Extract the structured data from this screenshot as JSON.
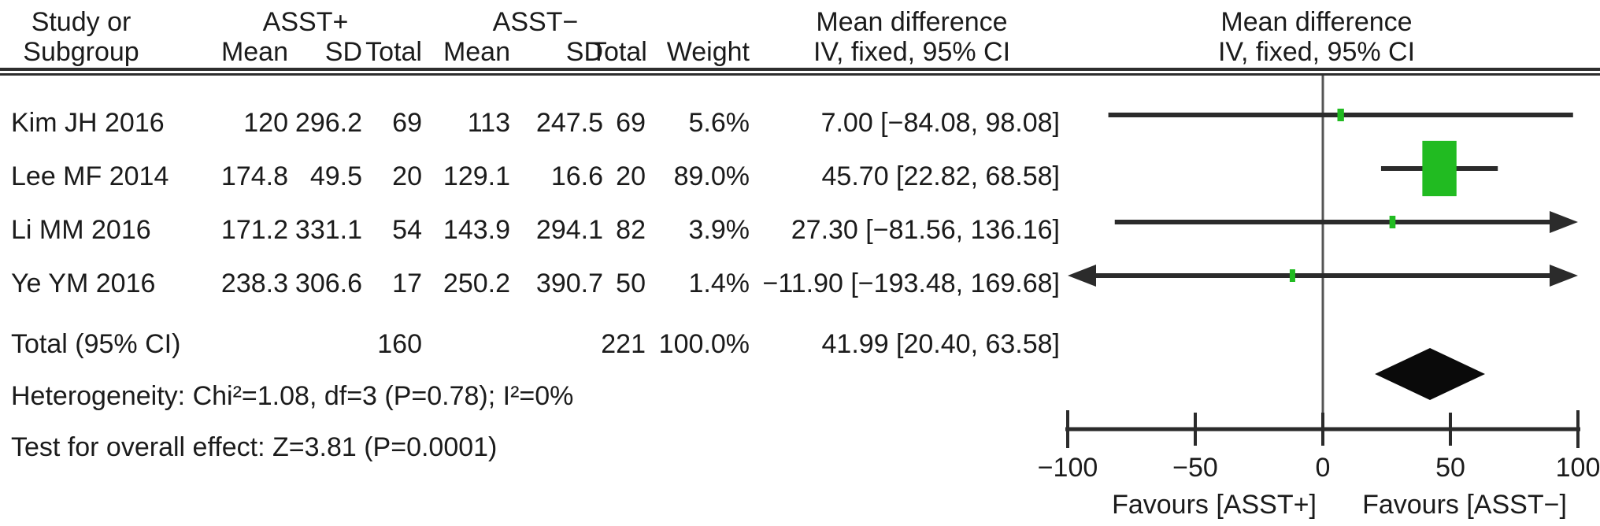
{
  "table": {
    "headers": {
      "study_line1": "Study or",
      "study_line2": "Subgroup",
      "group1": "ASST+",
      "group2": "ASST−",
      "mean": "Mean",
      "sd": "SD",
      "total": "Total",
      "weight": "Weight",
      "md_line1": "Mean difference",
      "md_line2": "IV, fixed, 95% CI"
    },
    "rows": [
      {
        "study": "Kim JH 2016",
        "mean1": "120",
        "sd1": "296.2",
        "total1": "69",
        "mean2": "113",
        "sd2": "247.5",
        "total2": "69",
        "weight": "5.6%",
        "ci": "7.00 [−84.08, 98.08]"
      },
      {
        "study": "Lee MF 2014",
        "mean1": "174.8",
        "sd1": "49.5",
        "total1": "20",
        "mean2": "129.1",
        "sd2": "16.6",
        "total2": "20",
        "weight": "89.0%",
        "ci": "45.70 [22.82, 68.58]"
      },
      {
        "study": "Li MM 2016",
        "mean1": "171.2",
        "sd1": "331.1",
        "total1": "54",
        "mean2": "143.9",
        "sd2": "294.1",
        "total2": "82",
        "weight": "3.9%",
        "ci": "27.30 [−81.56, 136.16]"
      },
      {
        "study": "Ye YM 2016",
        "mean1": "238.3",
        "sd1": "306.6",
        "total1": "17",
        "mean2": "250.2",
        "sd2": "390.7",
        "total2": "50",
        "weight": "1.4%",
        "ci": "−11.90 [−193.48, 169.68]"
      }
    ],
    "total_row": {
      "label": "Total (95% CI)",
      "total1": "160",
      "total2": "221",
      "weight": "100.0%",
      "ci": "41.99 [20.40, 63.58]"
    },
    "heterogeneity": "Heterogeneity: Chi²=1.08, df=3 (P=0.78); I²=0%",
    "overall_effect": "Test for overall effect: Z=3.81 (P=0.0001)"
  },
  "chart_data": {
    "type": "scatter",
    "subtype": "forest-plot",
    "effect_measure": "Mean difference, IV, fixed, 95% CI",
    "studies": [
      {
        "name": "Kim JH 2016",
        "effect": 7.0,
        "ci_low": -84.08,
        "ci_high": 98.08,
        "weight_pct": 5.6
      },
      {
        "name": "Lee MF 2014",
        "effect": 45.7,
        "ci_low": 22.82,
        "ci_high": 68.58,
        "weight_pct": 89.0
      },
      {
        "name": "Li MM 2016",
        "effect": 27.3,
        "ci_low": -81.56,
        "ci_high": 136.16,
        "weight_pct": 3.9
      },
      {
        "name": "Ye YM 2016",
        "effect": -11.9,
        "ci_low": -193.48,
        "ci_high": 169.68,
        "weight_pct": 1.4
      }
    ],
    "total": {
      "label": "Total (95% CI)",
      "effect": 41.99,
      "ci_low": 20.4,
      "ci_high": 63.58,
      "weight_pct": 100.0
    },
    "axis": {
      "min": -100,
      "max": 100,
      "ticks": [
        -100,
        -50,
        0,
        50,
        100
      ],
      "tick_labels": [
        "−100",
        "−50",
        "0",
        "50",
        "100"
      ],
      "favours_left": "Favours [ASST+]",
      "favours_right": "Favours [ASST−]"
    },
    "colors": {
      "marker_green": "#21bb21",
      "line_dark": "#2b2b2b",
      "zero_line": "#555555",
      "diamond": "#0a0a0a"
    }
  }
}
